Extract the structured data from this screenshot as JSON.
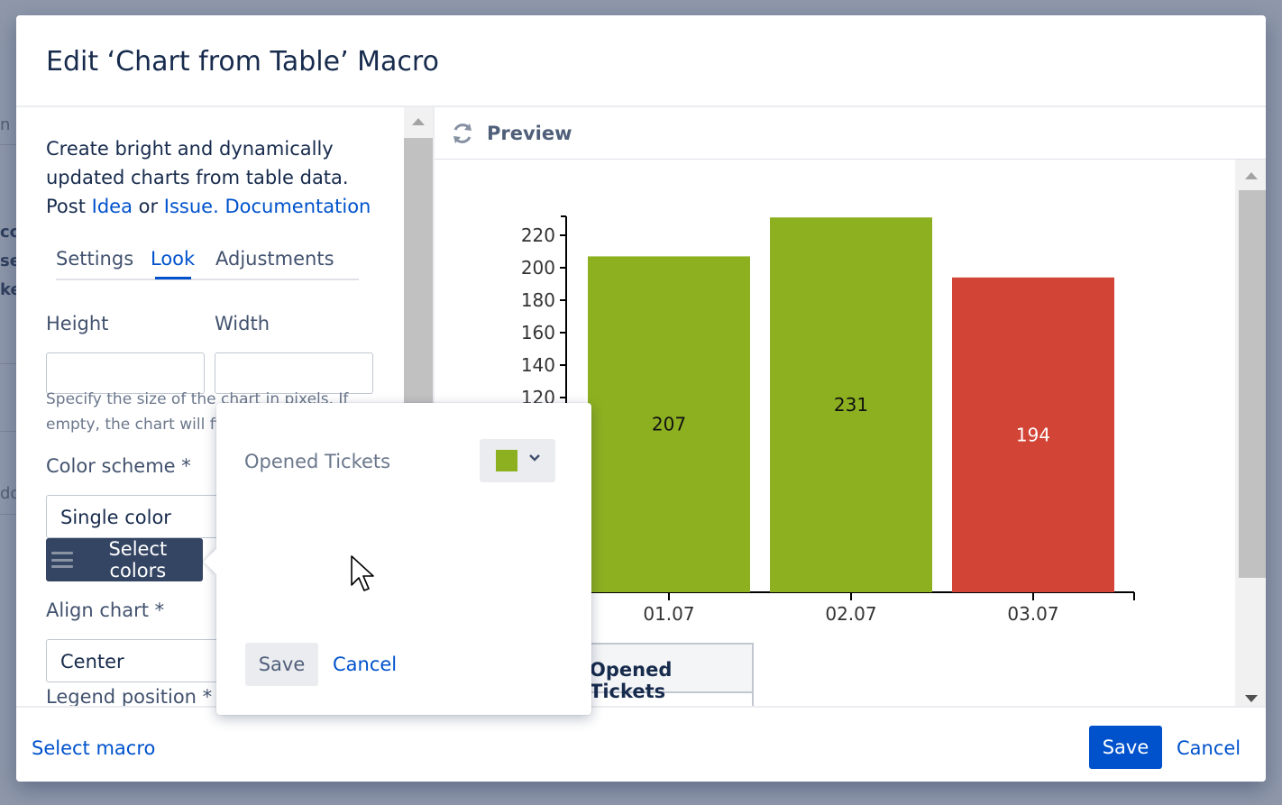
{
  "background": {
    "fragments": [
      "n",
      "cc",
      "se",
      "ke",
      "do"
    ]
  },
  "dialog": {
    "title": "Edit ‘Chart from Table’ Macro"
  },
  "intro": {
    "text_before": "Create bright and dynamically updated charts from table data. Post",
    "link_idea": "Idea",
    "or": " or ",
    "link_issue": "Issue.",
    "link_docs": "Documentation"
  },
  "tabs": [
    {
      "label": "Settings"
    },
    {
      "label": "Look",
      "active": true
    },
    {
      "label": "Adjustments"
    }
  ],
  "fields": {
    "height_label": "Height",
    "height_value": "",
    "width_label": "Width",
    "width_value": "",
    "help_text": "Specify the size of the chart in pixels. If empty, the chart will fit",
    "color_scheme_label": "Color scheme *",
    "color_scheme_value": "Single color",
    "select_colors_label": "Select colors",
    "align_chart_label": "Align chart *",
    "align_chart_value": "Center",
    "legend_position_label": "Legend position *"
  },
  "preview": {
    "title": "Preview",
    "legend_header": "Opened Tickets"
  },
  "chart_data": {
    "type": "bar",
    "categories": [
      "01.07",
      "02.07",
      "03.07"
    ],
    "series": [
      {
        "name": "Opened Tickets",
        "values": [
          207,
          231,
          194
        ]
      }
    ],
    "bar_colors": [
      "#8db021",
      "#8db021",
      "#d24536"
    ],
    "y_ticks": [
      120,
      140,
      160,
      180,
      200,
      220
    ],
    "ylim": [
      0,
      232
    ],
    "title": "",
    "xlabel": "",
    "ylabel": "",
    "grid": false
  },
  "popover": {
    "series_label": "Opened Tickets",
    "swatch_color": "#8db021",
    "save_label": "Save",
    "cancel_label": "Cancel"
  },
  "footer": {
    "select_macro": "Select macro",
    "save_label": "Save",
    "cancel_label": "Cancel"
  },
  "colors": {
    "accent": "#0052cc",
    "dark_button": "#344563"
  }
}
